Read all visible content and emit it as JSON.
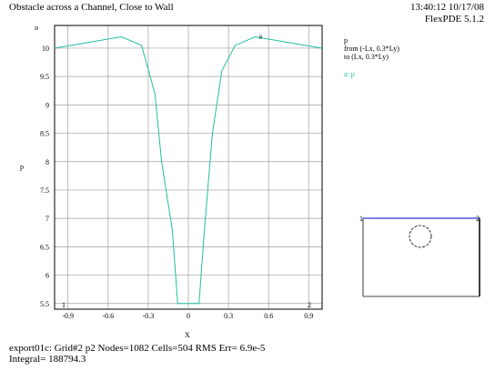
{
  "header": {
    "title": "Obstacle across a Channel, Close to Wall",
    "time": "13:40:12 10/17/08",
    "version": "FlexPDE 5.1.2"
  },
  "legend": {
    "line1": "p",
    "line2": "from (-Lx, 0.3*Ly)",
    "line3": "to (Lx, 0.3*Ly)",
    "series_label": "a: p"
  },
  "footer": {
    "line1": "export01c:  Grid#2  p2  Nodes=1082 Cells=504 RMS Err= 6.9e-5",
    "line2": "Integral=  188794.3"
  },
  "colors": {
    "series": "#20c0a0",
    "grid": "#a0a0a0",
    "marker": "#cc0000",
    "inset_top": "#0000cc"
  },
  "chart_data": {
    "type": "line",
    "xlabel": "X",
    "ylabel": "p",
    "y_axis_marker": "u",
    "xlim": [
      -1.0,
      1.0
    ],
    "ylim": [
      5.4,
      10.4
    ],
    "xticks": [
      "-0.9",
      "-0.6",
      "-0.3",
      "0",
      "0.3",
      "0.6",
      "0.9"
    ],
    "yticks": [
      "5.5",
      "6",
      "6.5",
      "7",
      "7.5",
      "8",
      "8.5",
      "9",
      "9.5",
      "10"
    ],
    "endpoint_labels": [
      "1",
      "2"
    ],
    "series": [
      {
        "name": "a",
        "x": [
          -1.0,
          -0.5,
          -0.35,
          -0.25,
          -0.2,
          -0.12,
          -0.08,
          -0.02,
          0.02,
          0.08,
          0.12,
          0.18,
          0.25,
          0.35,
          0.5,
          1.0
        ],
        "y": [
          10.0,
          10.2,
          10.05,
          9.2,
          8.0,
          6.8,
          5.5,
          5.5,
          5.5,
          5.5,
          6.8,
          8.5,
          9.6,
          10.05,
          10.2,
          10.0
        ]
      }
    ]
  },
  "inset": {
    "corner_left": "1",
    "corner_right": "2"
  }
}
